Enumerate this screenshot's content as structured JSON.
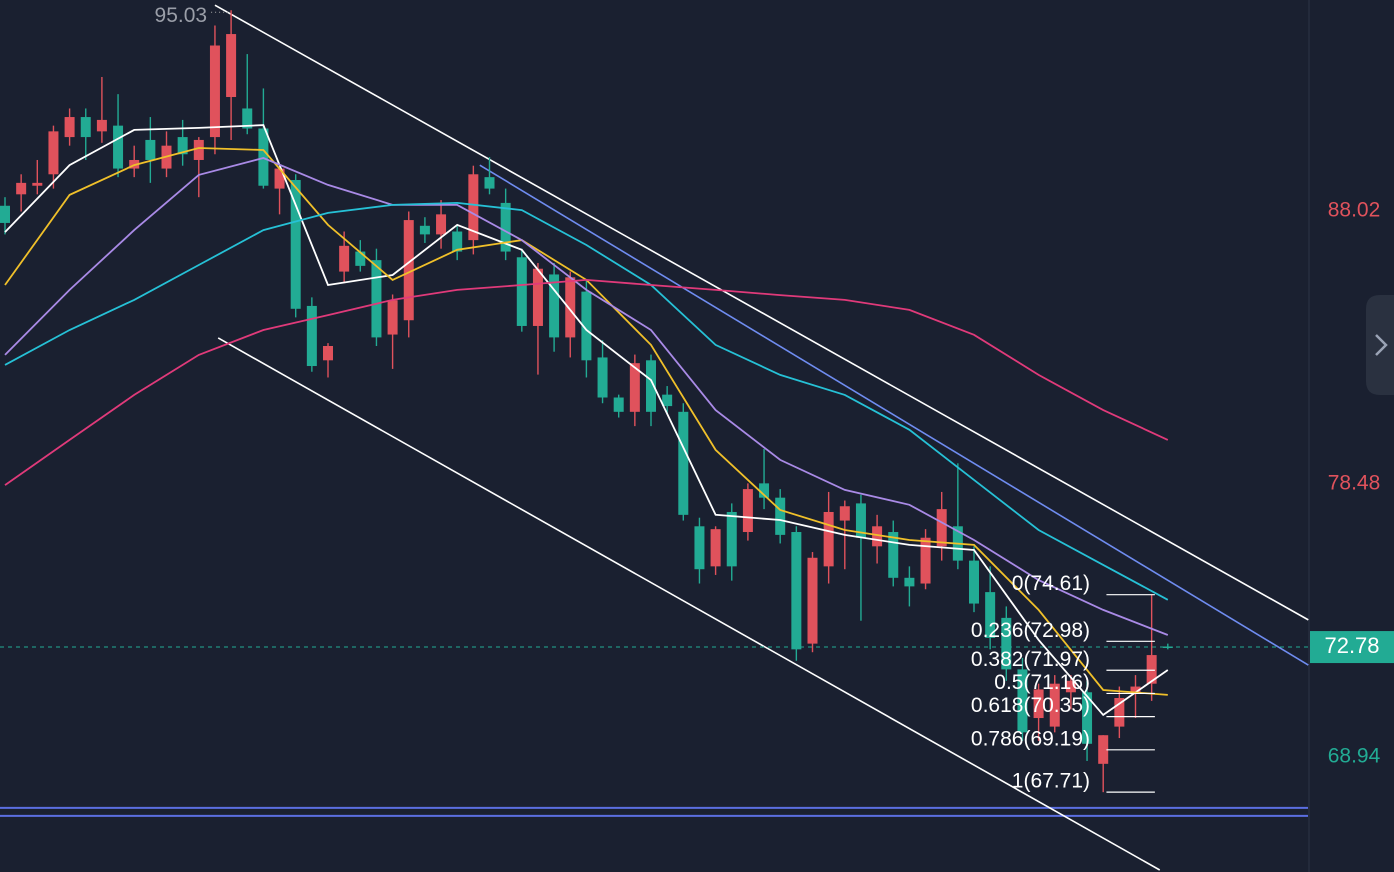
{
  "chart_data": {
    "type": "candlestick",
    "ylim": [
      64.92,
      95.39
    ],
    "yticks": [
      88.02,
      78.48,
      68.94
    ],
    "up_color": "#e0525c",
    "down_color": "#22ab94",
    "last_price": 72.78,
    "high_label": {
      "index": 14,
      "value": 95.03
    },
    "candles": [
      [
        88.2,
        88.5,
        87.2,
        87.6
      ],
      [
        88.6,
        89.3,
        88.0,
        89.0
      ],
      [
        88.9,
        89.8,
        88.6,
        89.0
      ],
      [
        89.3,
        91.0,
        88.8,
        90.8
      ],
      [
        90.6,
        91.6,
        90.3,
        91.3
      ],
      [
        91.3,
        91.6,
        89.8,
        90.6
      ],
      [
        90.8,
        92.7,
        90.4,
        91.2
      ],
      [
        91.0,
        92.1,
        89.2,
        89.5
      ],
      [
        89.5,
        90.3,
        89.2,
        89.8
      ],
      [
        90.5,
        91.3,
        89.0,
        89.8
      ],
      [
        89.5,
        90.8,
        89.2,
        90.3
      ],
      [
        90.6,
        91.2,
        89.6,
        90.0
      ],
      [
        89.8,
        90.6,
        88.5,
        90.5
      ],
      [
        90.6,
        94.5,
        90.0,
        93.8
      ],
      [
        92.0,
        95.03,
        90.5,
        94.2
      ],
      [
        91.6,
        93.5,
        90.7,
        90.9
      ],
      [
        90.9,
        92.3,
        88.8,
        88.9
      ],
      [
        88.8,
        89.5,
        87.9,
        89.5
      ],
      [
        89.1,
        89.3,
        84.3,
        84.6
      ],
      [
        84.7,
        85.0,
        82.4,
        82.6
      ],
      [
        82.8,
        83.4,
        82.2,
        83.3
      ],
      [
        85.9,
        87.3,
        85.5,
        86.8
      ],
      [
        86.6,
        87.0,
        85.9,
        86.1
      ],
      [
        86.3,
        86.7,
        83.3,
        83.6
      ],
      [
        83.7,
        85.1,
        82.5,
        84.9
      ],
      [
        84.2,
        88.0,
        83.6,
        87.7
      ],
      [
        87.5,
        87.8,
        86.9,
        87.2
      ],
      [
        87.2,
        88.4,
        86.7,
        87.9
      ],
      [
        87.3,
        87.5,
        86.3,
        86.6
      ],
      [
        87.0,
        89.6,
        86.5,
        89.3
      ],
      [
        89.2,
        89.9,
        88.6,
        88.8
      ],
      [
        88.3,
        88.8,
        86.3,
        86.6
      ],
      [
        86.4,
        86.7,
        83.8,
        84.0
      ],
      [
        84.0,
        86.2,
        82.3,
        86.0
      ],
      [
        85.8,
        86.2,
        83.1,
        83.6
      ],
      [
        83.6,
        85.9,
        82.9,
        85.7
      ],
      [
        85.2,
        85.6,
        82.2,
        82.8
      ],
      [
        82.9,
        83.5,
        81.3,
        81.5
      ],
      [
        81.5,
        81.6,
        80.8,
        81.0
      ],
      [
        81.0,
        83.0,
        80.5,
        82.7
      ],
      [
        82.8,
        83.0,
        80.5,
        81.0
      ],
      [
        81.6,
        81.9,
        80.9,
        81.2
      ],
      [
        81.0,
        81.3,
        77.2,
        77.4
      ],
      [
        77.0,
        77.3,
        75.0,
        75.5
      ],
      [
        75.6,
        77.0,
        75.3,
        76.9
      ],
      [
        77.5,
        77.8,
        75.1,
        75.6
      ],
      [
        76.8,
        78.5,
        76.5,
        78.3
      ],
      [
        78.5,
        79.7,
        77.6,
        78.0
      ],
      [
        78.0,
        78.3,
        76.4,
        76.7
      ],
      [
        76.8,
        77.0,
        72.3,
        72.7
      ],
      [
        72.9,
        76.1,
        72.6,
        75.9
      ],
      [
        75.6,
        78.2,
        75.0,
        77.5
      ],
      [
        77.2,
        77.9,
        75.5,
        77.7
      ],
      [
        77.8,
        78.1,
        73.7,
        76.6
      ],
      [
        76.3,
        77.4,
        75.7,
        77.0
      ],
      [
        76.8,
        77.2,
        74.9,
        75.2
      ],
      [
        75.2,
        75.6,
        74.2,
        74.9
      ],
      [
        75.0,
        76.9,
        74.8,
        76.6
      ],
      [
        76.3,
        78.2,
        75.8,
        77.6
      ],
      [
        77.0,
        79.2,
        75.5,
        75.8
      ],
      [
        75.8,
        76.3,
        74.0,
        74.3
      ],
      [
        74.7,
        75.6,
        72.7,
        73.1
      ],
      [
        73.8,
        74.2,
        71.6,
        72.0
      ],
      [
        72.0,
        72.4,
        69.5,
        69.8
      ],
      [
        70.3,
        71.5,
        69.5,
        71.3
      ],
      [
        70.0,
        71.8,
        69.8,
        71.5
      ],
      [
        71.2,
        71.8,
        70.6,
        71.6
      ],
      [
        71.2,
        71.6,
        68.8,
        69.4
      ],
      [
        68.7,
        69.7,
        67.71,
        69.7
      ],
      [
        70.0,
        71.4,
        69.6,
        71.0
      ],
      [
        71.2,
        71.8,
        70.3,
        71.4
      ],
      [
        71.5,
        74.61,
        70.9,
        72.5
      ],
      [
        72.8,
        72.9,
        72.7,
        72.78
      ]
    ],
    "series": [
      {
        "color": "#ffffff",
        "x": [
          0,
          4,
          8,
          12,
          16,
          20,
          24,
          28,
          32,
          36,
          40,
          44,
          48,
          52,
          56,
          60,
          64,
          68,
          72
        ],
        "values": [
          87.28,
          89.62,
          90.85,
          90.92,
          91.02,
          85.43,
          85.78,
          87.53,
          86.66,
          83.86,
          82.11,
          77.4,
          77.22,
          76.7,
          76.35,
          76.17,
          73.03,
          70.41,
          71.98
        ]
      },
      {
        "color": "#f0c02a",
        "x": [
          0,
          4,
          8,
          12,
          16,
          20,
          24,
          28,
          32,
          36,
          40,
          44,
          48,
          52,
          56,
          60,
          64,
          68,
          72
        ],
        "values": [
          85.43,
          88.58,
          89.62,
          90.22,
          90.15,
          87.53,
          85.61,
          86.66,
          87.0,
          85.61,
          83.34,
          79.67,
          77.57,
          76.87,
          76.52,
          76.35,
          74.08,
          71.28,
          71.11
        ]
      },
      {
        "color": "#a98ae6",
        "x": [
          0,
          4,
          8,
          12,
          16,
          20,
          24,
          28,
          32,
          36,
          40,
          44,
          48,
          52,
          56,
          60,
          64,
          68,
          72
        ],
        "values": [
          82.99,
          85.26,
          87.35,
          89.28,
          89.87,
          88.93,
          88.23,
          88.23,
          87.0,
          85.26,
          83.86,
          81.06,
          79.32,
          78.27,
          77.75,
          76.52,
          75.12,
          74.08,
          73.2
        ]
      },
      {
        "color": "#26c1d6",
        "x": [
          0,
          4,
          8,
          12,
          16,
          20,
          24,
          28,
          32,
          36,
          40,
          44,
          48,
          52,
          56,
          60,
          64,
          68,
          72
        ],
        "values": [
          82.64,
          83.86,
          84.91,
          86.13,
          87.35,
          87.95,
          88.23,
          88.3,
          88.05,
          86.83,
          85.43,
          83.34,
          82.29,
          81.59,
          80.37,
          78.62,
          76.87,
          75.65,
          74.43
        ]
      },
      {
        "color": "#e03a7a",
        "x": [
          0,
          4,
          8,
          12,
          16,
          20,
          24,
          28,
          32,
          36,
          40,
          44,
          48,
          52,
          56,
          60,
          64,
          68,
          72
        ],
        "values": [
          78.44,
          80.02,
          81.59,
          82.99,
          83.86,
          84.38,
          84.91,
          85.26,
          85.43,
          85.61,
          85.43,
          85.26,
          85.08,
          84.91,
          84.56,
          83.69,
          82.29,
          81.06,
          80.02
        ]
      }
    ],
    "trendlines": [
      {
        "color": "#ffffff",
        "points": [
          [
            13.0,
            95.21
          ],
          [
            80.7,
            73.73
          ]
        ]
      },
      {
        "color": "#ffffff",
        "points": [
          [
            13.2,
            83.58
          ],
          [
            71.5,
            64.99
          ]
        ]
      },
      {
        "color": "#6f8cf0",
        "points": [
          [
            29.4,
            89.62
          ],
          [
            80.7,
            72.15
          ]
        ]
      }
    ],
    "hlines": [
      {
        "value": 67.16,
        "color": "#5b6ee1"
      },
      {
        "value": 66.88,
        "color": "#5b6ee1"
      }
    ],
    "fib": {
      "start": 68.2,
      "end": 71.2,
      "levels": [
        {
          "label": "0(74.61)",
          "value": 74.61
        },
        {
          "label": "0.236(72.98)",
          "value": 72.98
        },
        {
          "label": "0.382(71.97)",
          "value": 71.97
        },
        {
          "label": "0.5(71.16)",
          "value": 71.16
        },
        {
          "label": "0.618(70.35)",
          "value": 70.35
        },
        {
          "label": "0.786(69.19)",
          "value": 69.19
        },
        {
          "label": "1(67.71)",
          "value": 67.71
        }
      ]
    }
  }
}
